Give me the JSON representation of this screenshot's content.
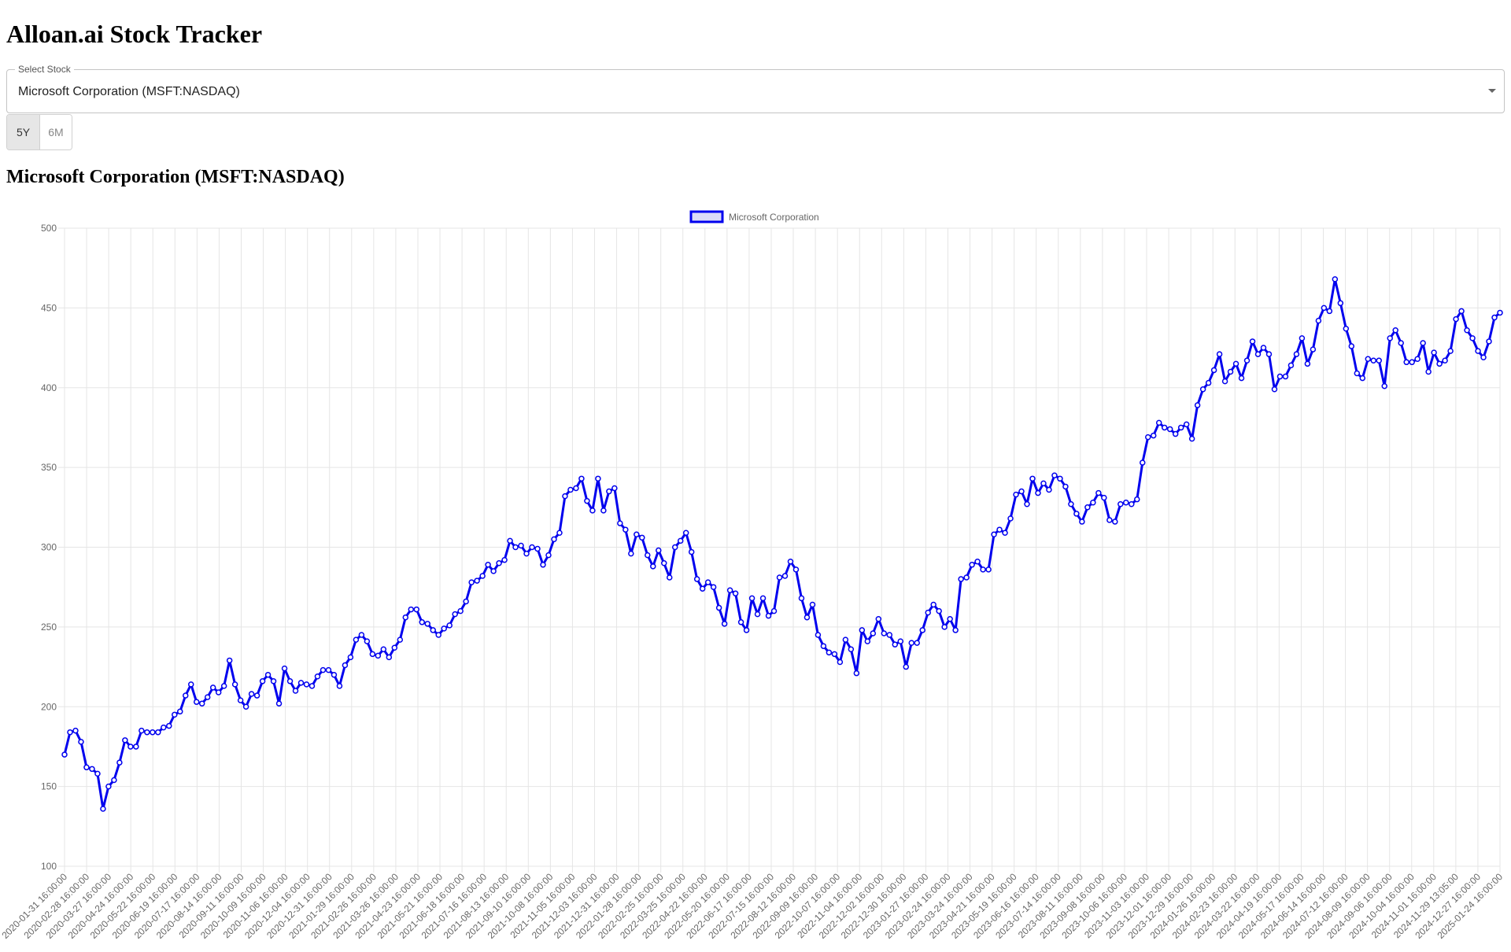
{
  "app": {
    "title": "Alloan.ai Stock Tracker"
  },
  "select": {
    "label": "Select Stock",
    "value": "Microsoft Corporation (MSFT:NASDAQ)"
  },
  "range": {
    "options": [
      "5Y",
      "6M"
    ],
    "active": "5Y"
  },
  "heading": "Microsoft Corporation (MSFT:NASDAQ)",
  "colors": {
    "line": "#0000ee",
    "legend_fill": "#dcdcf8",
    "grid": "#e5e5e5",
    "tick_text": "#666666"
  },
  "chart_data": {
    "type": "line",
    "legend": {
      "position": "top-center"
    },
    "grid": true,
    "ylim": [
      100,
      500
    ],
    "yticks": [
      100,
      150,
      200,
      250,
      300,
      350,
      400,
      450,
      500
    ],
    "xtick_labels": [
      "2020-01-31 16:00:00",
      "2020-02-28 16:00:00",
      "2020-03-27 16:00:00",
      "2020-04-24 16:00:00",
      "2020-05-22 16:00:00",
      "2020-06-19 16:00:00",
      "2020-07-17 16:00:00",
      "2020-08-14 16:00:00",
      "2020-09-11 16:00:00",
      "2020-10-09 16:00:00",
      "2020-11-06 16:00:00",
      "2020-12-04 16:00:00",
      "2020-12-31 16:00:00",
      "2021-01-29 16:00:00",
      "2021-02-26 16:00:00",
      "2021-03-26 16:00:00",
      "2021-04-23 16:00:00",
      "2021-05-21 16:00:00",
      "2021-06-18 16:00:00",
      "2021-07-16 16:00:00",
      "2021-08-13 16:00:00",
      "2021-09-10 16:00:00",
      "2021-10-08 16:00:00",
      "2021-11-05 16:00:00",
      "2021-12-03 16:00:00",
      "2021-12-31 16:00:00",
      "2022-01-28 16:00:00",
      "2022-02-25 16:00:00",
      "2022-03-25 16:00:00",
      "2022-04-22 16:00:00",
      "2022-05-20 16:00:00",
      "2022-06-17 16:00:00",
      "2022-07-15 16:00:00",
      "2022-08-12 16:00:00",
      "2022-09-09 16:00:00",
      "2022-10-07 16:00:00",
      "2022-11-04 16:00:00",
      "2022-12-02 16:00:00",
      "2022-12-30 16:00:00",
      "2023-01-27 16:00:00",
      "2023-02-24 16:00:00",
      "2023-03-24 16:00:00",
      "2023-04-21 16:00:00",
      "2023-05-19 16:00:00",
      "2023-06-16 16:00:00",
      "2023-07-14 16:00:00",
      "2023-08-11 16:00:00",
      "2023-09-08 16:00:00",
      "2023-10-06 16:00:00",
      "2023-11-03 16:00:00",
      "2023-12-01 16:00:00",
      "2023-12-29 16:00:00",
      "2024-01-26 16:00:00",
      "2024-02-23 16:00:00",
      "2024-03-22 16:00:00",
      "2024-04-19 16:00:00",
      "2024-05-17 16:00:00",
      "2024-06-14 16:00:00",
      "2024-07-12 16:00:00",
      "2024-08-09 16:00:00",
      "2024-09-06 16:00:00",
      "2024-10-04 16:00:00",
      "2024-11-01 16:00:00",
      "2024-11-29 13:05:00",
      "2024-12-27 16:00:00",
      "2025-01-24 16:00:00"
    ],
    "series": [
      {
        "name": "Microsoft Corporation",
        "values": [
          170,
          184,
          185,
          178,
          162,
          161,
          158,
          136,
          150,
          154,
          165,
          179,
          175,
          175,
          185,
          184,
          184,
          184,
          187,
          188,
          195,
          197,
          207,
          214,
          203,
          202,
          206,
          212,
          209,
          213,
          229,
          214,
          204,
          200,
          208,
          207,
          216,
          220,
          216,
          202,
          224,
          216,
          210,
          215,
          214,
          213,
          219,
          223,
          223,
          220,
          213,
          226,
          231,
          242,
          245,
          241,
          233,
          232,
          236,
          231,
          237,
          242,
          256,
          261,
          261,
          253,
          252,
          248,
          245,
          249,
          251,
          258,
          260,
          266,
          278,
          279,
          282,
          289,
          285,
          290,
          292,
          304,
          300,
          301,
          296,
          300,
          299,
          289,
          295,
          305,
          309,
          332,
          336,
          337,
          343,
          329,
          323,
          343,
          323,
          335,
          337,
          315,
          311,
          296,
          308,
          306,
          295,
          288,
          298,
          290,
          281,
          300,
          304,
          309,
          297,
          280,
          274,
          278,
          275,
          262,
          252,
          273,
          271,
          253,
          248,
          268,
          258,
          268,
          257,
          260,
          281,
          282,
          291,
          286,
          268,
          256,
          264,
          245,
          238,
          234,
          233,
          228,
          242,
          236,
          221,
          248,
          241,
          246,
          255,
          246,
          245,
          239,
          241,
          225,
          240,
          240,
          248,
          259,
          264,
          260,
          250,
          255,
          248,
          280,
          281,
          289,
          291,
          286,
          286,
          308,
          311,
          309,
          318,
          333,
          335,
          327,
          343,
          334,
          340,
          336,
          345,
          343,
          338,
          327,
          321,
          316,
          325,
          328,
          334,
          331,
          317,
          316,
          327,
          328,
          327,
          330,
          353,
          369,
          370,
          378,
          375,
          374,
          371,
          375,
          377,
          368,
          389,
          399,
          403,
          411,
          421,
          404,
          410,
          415,
          406,
          417,
          429,
          421,
          425,
          421,
          399,
          407,
          407,
          414,
          421,
          431,
          415,
          424,
          442,
          450,
          448,
          468,
          453,
          437,
          426,
          409,
          406,
          418,
          417,
          417,
          401,
          431,
          436,
          428,
          416,
          416,
          418,
          428,
          410,
          422,
          415,
          417,
          423,
          443,
          448,
          436,
          431,
          423,
          419,
          429,
          444,
          447
        ]
      }
    ]
  }
}
